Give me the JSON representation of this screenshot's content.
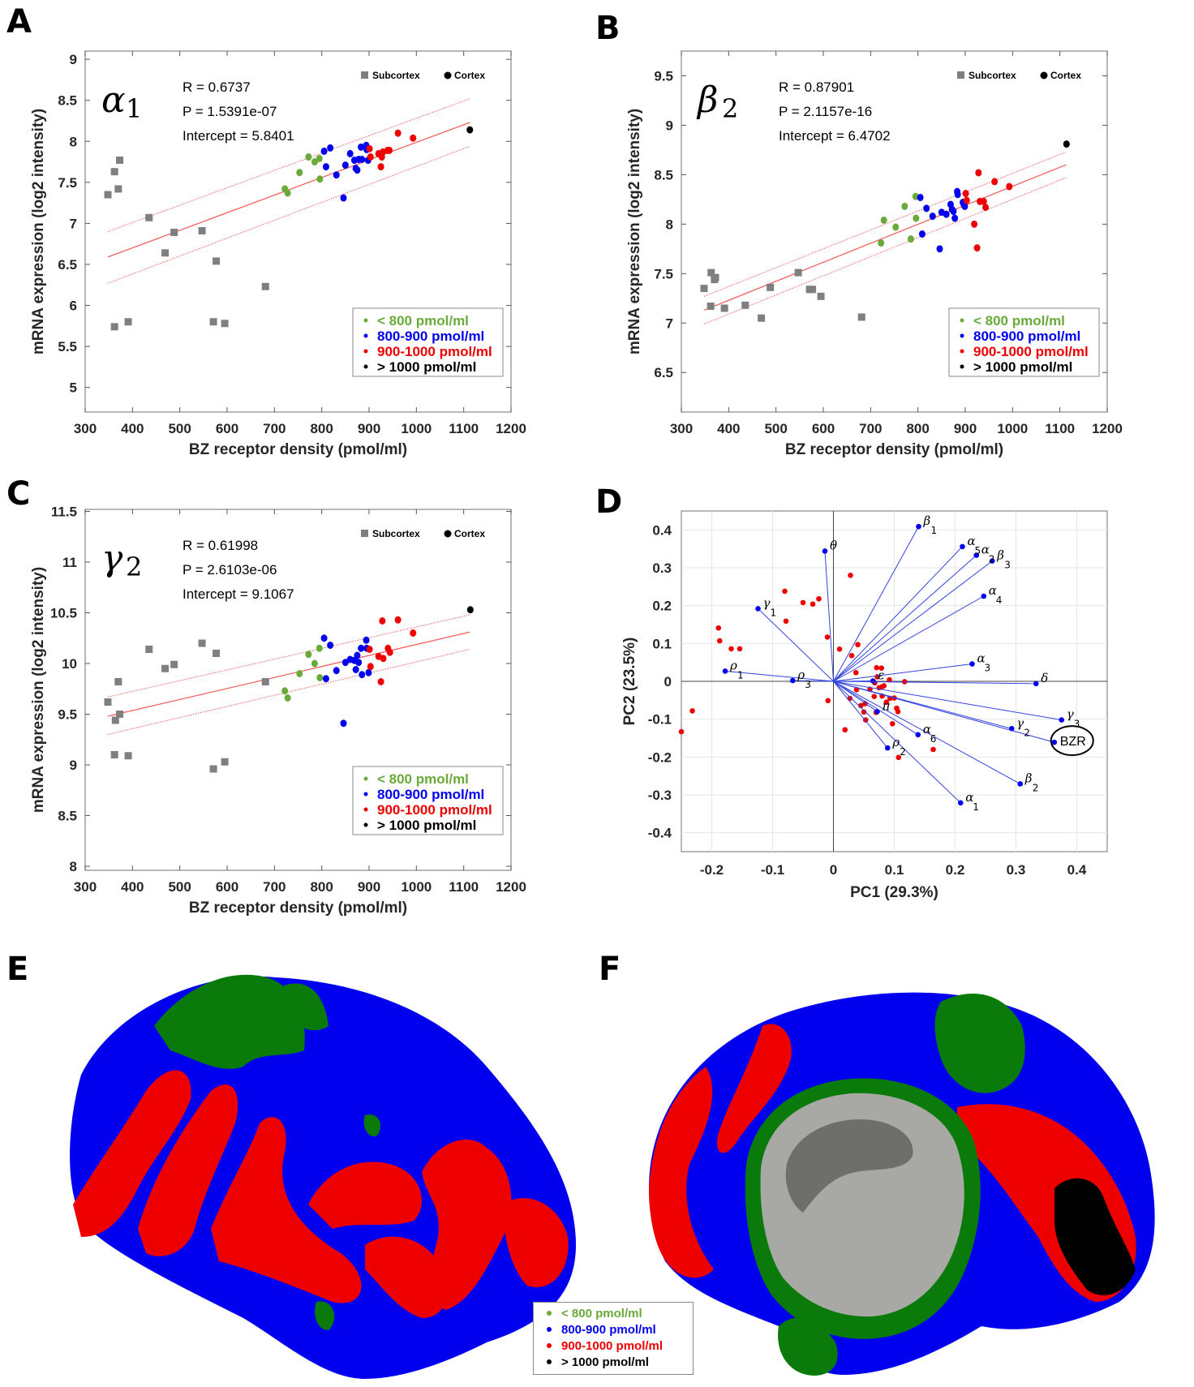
{
  "panel_labels": {
    "A": "A",
    "B": "B",
    "C": "C",
    "D": "D",
    "E": "E",
    "F": "F"
  },
  "colors": {
    "green": "#6aaa3a",
    "blue": "#0000ee",
    "red": "#ee0000",
    "black": "#000000",
    "gray": "#7f7f7f",
    "fit": "#f06060",
    "pca_vec": "#3344dd"
  },
  "legend_bins": [
    {
      "label": "< 800 pmol/ml",
      "color": "#6aaa3a"
    },
    {
      "label": "800-900 pmol/ml",
      "color": "#0000ee"
    },
    {
      "label": "900-1000 pmol/ml",
      "color": "#ee0000"
    },
    {
      "label": "> 1000 pmol/ml",
      "color": "#000000"
    }
  ],
  "region_legend": {
    "subcortex": "Subcortex",
    "cortex": "Cortex"
  },
  "chart_data": [
    {
      "id": "A",
      "type": "scatter",
      "subunit": {
        "symbol": "α",
        "sub": "1"
      },
      "stats": {
        "r": "R = 0.6737",
        "p": "P = 1.5391e-07",
        "intercept": "Intercept = 5.8401"
      },
      "xlabel": "BZ receptor density (pmol/ml)",
      "ylabel": "mRNA expression (log2 intensity)",
      "xlim": [
        300,
        1200
      ],
      "ylim": [
        4.7,
        9.1
      ],
      "xticks": [
        300,
        400,
        500,
        600,
        700,
        800,
        900,
        1000,
        1100,
        1200
      ],
      "yticks": [
        5,
        5.5,
        6,
        6.5,
        7,
        7.5,
        8,
        8.5,
        9
      ],
      "ytick_labels": [
        "5",
        "5.5",
        "6",
        "6.5",
        "7",
        "7.5",
        "8",
        "8.5",
        "9"
      ],
      "fit": {
        "x": [
          348,
          1113
        ],
        "y": [
          6.59,
          8.23
        ],
        "ci_lo": [
          6.27,
          7.94
        ],
        "ci_hi": [
          6.9,
          8.52
        ]
      },
      "subcortex": [
        [
          348,
          7.35
        ],
        [
          362,
          7.63
        ],
        [
          370,
          7.42
        ],
        [
          373,
          7.77
        ],
        [
          362,
          5.74
        ],
        [
          391,
          5.8
        ],
        [
          435,
          7.07
        ],
        [
          469,
          6.64
        ],
        [
          488,
          6.89
        ],
        [
          547,
          6.91
        ],
        [
          577,
          6.54
        ],
        [
          571,
          5.8
        ],
        [
          595,
          5.78
        ],
        [
          681,
          6.23
        ]
      ],
      "points": [
        [
          722,
          7.42,
          "g"
        ],
        [
          728,
          7.37,
          "g"
        ],
        [
          753,
          7.62,
          "g"
        ],
        [
          772,
          7.81,
          "g"
        ],
        [
          785,
          7.75,
          "g"
        ],
        [
          795,
          7.79,
          "g"
        ],
        [
          796,
          7.54,
          "g"
        ],
        [
          805,
          7.88,
          "b"
        ],
        [
          809,
          7.69,
          "b"
        ],
        [
          818,
          7.92,
          "b"
        ],
        [
          831,
          7.59,
          "b"
        ],
        [
          846,
          7.31,
          "b"
        ],
        [
          850,
          7.71,
          "b"
        ],
        [
          860,
          7.85,
          "b"
        ],
        [
          869,
          7.77,
          "b"
        ],
        [
          872,
          7.67,
          "b"
        ],
        [
          875,
          7.65,
          "b"
        ],
        [
          878,
          7.78,
          "b"
        ],
        [
          883,
          7.93,
          "b"
        ],
        [
          885,
          7.78,
          "b"
        ],
        [
          894,
          7.95,
          "b"
        ],
        [
          895,
          7.9,
          "b"
        ],
        [
          898,
          7.77,
          "b"
        ],
        [
          901,
          7.91,
          "r"
        ],
        [
          903,
          7.81,
          "r"
        ],
        [
          920,
          7.85,
          "r"
        ],
        [
          925,
          7.69,
          "r"
        ],
        [
          927,
          7.81,
          "r"
        ],
        [
          929,
          7.87,
          "r"
        ],
        [
          939,
          7.89,
          "r"
        ],
        [
          943,
          7.89,
          "r"
        ],
        [
          961,
          8.1,
          "r"
        ],
        [
          993,
          8.04,
          "r"
        ],
        [
          1113,
          8.14,
          "k"
        ]
      ]
    },
    {
      "id": "B",
      "type": "scatter",
      "subunit": {
        "symbol": "β",
        "sub": "2"
      },
      "stats": {
        "r": "R = 0.87901",
        "p": "P = 2.1157e-16",
        "intercept": "Intercept = 6.4702"
      },
      "xlabel": "BZ receptor density (pmol/ml)",
      "ylabel": "mRNA expression (log2 intensity)",
      "xlim": [
        300,
        1200
      ],
      "ylim": [
        6.1,
        9.75
      ],
      "xticks": [
        300,
        400,
        500,
        600,
        700,
        800,
        900,
        1000,
        1100,
        1200
      ],
      "yticks": [
        6.5,
        7,
        7.5,
        8,
        8.5,
        9,
        9.5
      ],
      "ytick_labels": [
        "6.5",
        "7",
        "7.5",
        "8",
        "8.5",
        "9",
        "9.5"
      ],
      "fit": {
        "x": [
          348,
          1113
        ],
        "y": [
          7.13,
          8.6
        ],
        "ci_lo": [
          6.99,
          8.47
        ],
        "ci_hi": [
          7.27,
          8.73
        ]
      },
      "subcortex": [
        [
          348,
          7.35
        ],
        [
          362,
          7.17
        ],
        [
          363,
          7.51
        ],
        [
          370,
          7.44
        ],
        [
          372,
          7.46
        ],
        [
          391,
          7.15
        ],
        [
          435,
          7.18
        ],
        [
          469,
          7.05
        ],
        [
          488,
          7.36
        ],
        [
          547,
          7.51
        ],
        [
          571,
          7.34
        ],
        [
          577,
          7.34
        ],
        [
          595,
          7.27
        ],
        [
          681,
          7.06
        ]
      ],
      "points": [
        [
          722,
          7.81,
          "g"
        ],
        [
          728,
          8.04,
          "g"
        ],
        [
          753,
          7.97,
          "g"
        ],
        [
          772,
          8.18,
          "g"
        ],
        [
          785,
          7.85,
          "g"
        ],
        [
          795,
          8.28,
          "g"
        ],
        [
          796,
          8.06,
          "g"
        ],
        [
          805,
          8.27,
          "b"
        ],
        [
          809,
          7.9,
          "b"
        ],
        [
          818,
          8.16,
          "b"
        ],
        [
          831,
          8.08,
          "b"
        ],
        [
          846,
          7.75,
          "b"
        ],
        [
          850,
          8.12,
          "b"
        ],
        [
          860,
          8.1,
          "b"
        ],
        [
          869,
          8.2,
          "b"
        ],
        [
          872,
          8.15,
          "b"
        ],
        [
          875,
          8.13,
          "b"
        ],
        [
          878,
          8.06,
          "b"
        ],
        [
          883,
          8.33,
          "b"
        ],
        [
          884,
          8.3,
          "b"
        ],
        [
          895,
          8.22,
          "b"
        ],
        [
          897,
          8.2,
          "b"
        ],
        [
          899,
          8.18,
          "b"
        ],
        [
          901,
          8.31,
          "r"
        ],
        [
          903,
          8.24,
          "r"
        ],
        [
          919,
          8.0,
          "r"
        ],
        [
          925,
          7.76,
          "r"
        ],
        [
          928,
          8.52,
          "r"
        ],
        [
          931,
          8.23,
          "r"
        ],
        [
          939,
          8.23,
          "r"
        ],
        [
          943,
          8.17,
          "r"
        ],
        [
          962,
          8.43,
          "r"
        ],
        [
          993,
          8.38,
          "r"
        ],
        [
          1114,
          8.81,
          "k"
        ]
      ]
    },
    {
      "id": "C",
      "type": "scatter",
      "subunit": {
        "symbol": "γ",
        "sub": "2"
      },
      "stats": {
        "r": "R = 0.61998",
        "p": "P = 2.6103e-06",
        "intercept": "Intercept = 9.1067"
      },
      "xlabel": "BZ receptor density (pmol/ml)",
      "ylabel": "mRNA expression (log2 intensity)",
      "xlim": [
        300,
        1200
      ],
      "ylim": [
        7.96,
        11.52
      ],
      "xticks": [
        300,
        400,
        500,
        600,
        700,
        800,
        900,
        1000,
        1100,
        1200
      ],
      "yticks": [
        8,
        8.5,
        9,
        9.5,
        10,
        10.5,
        11,
        11.5
      ],
      "ytick_labels": [
        "8",
        "8.5",
        "9",
        "9.5",
        "10",
        "10.5",
        "11",
        "11.5"
      ],
      "fit": {
        "x": [
          348,
          1113
        ],
        "y": [
          9.48,
          10.31
        ],
        "ci_lo": [
          9.3,
          10.14
        ],
        "ci_hi": [
          9.67,
          10.48
        ]
      },
      "subcortex": [
        [
          348,
          9.62
        ],
        [
          362,
          9.1
        ],
        [
          364,
          9.44
        ],
        [
          370,
          9.82
        ],
        [
          373,
          9.5
        ],
        [
          391,
          9.09
        ],
        [
          435,
          10.14
        ],
        [
          469,
          9.95
        ],
        [
          488,
          9.99
        ],
        [
          547,
          10.2
        ],
        [
          571,
          8.96
        ],
        [
          577,
          10.1
        ],
        [
          595,
          9.03
        ],
        [
          681,
          9.82
        ]
      ],
      "points": [
        [
          722,
          9.73,
          "g"
        ],
        [
          728,
          9.66,
          "g"
        ],
        [
          753,
          9.9,
          "g"
        ],
        [
          772,
          10.09,
          "g"
        ],
        [
          785,
          10.0,
          "g"
        ],
        [
          795,
          10.15,
          "g"
        ],
        [
          796,
          9.86,
          "g"
        ],
        [
          805,
          10.25,
          "b"
        ],
        [
          809,
          9.85,
          "b"
        ],
        [
          818,
          10.18,
          "b"
        ],
        [
          831,
          9.93,
          "b"
        ],
        [
          846,
          9.41,
          "b"
        ],
        [
          850,
          10.01,
          "b"
        ],
        [
          860,
          10.04,
          "b"
        ],
        [
          869,
          10.03,
          "b"
        ],
        [
          872,
          9.94,
          "b"
        ],
        [
          875,
          10.08,
          "b"
        ],
        [
          878,
          10.01,
          "b"
        ],
        [
          883,
          10.15,
          "b"
        ],
        [
          885,
          9.89,
          "b"
        ],
        [
          894,
          10.23,
          "b"
        ],
        [
          895,
          10.15,
          "b"
        ],
        [
          899,
          9.91,
          "b"
        ],
        [
          901,
          10.14,
          "r"
        ],
        [
          903,
          9.97,
          "r"
        ],
        [
          920,
          10.07,
          "r"
        ],
        [
          925,
          9.82,
          "r"
        ],
        [
          928,
          10.42,
          "r"
        ],
        [
          930,
          10.05,
          "r"
        ],
        [
          940,
          10.15,
          "r"
        ],
        [
          944,
          10.11,
          "r"
        ],
        [
          961,
          10.43,
          "r"
        ],
        [
          993,
          10.3,
          "r"
        ],
        [
          1114,
          10.53,
          "k"
        ]
      ]
    },
    {
      "id": "D",
      "type": "scatter",
      "subtype": "pca-biplot",
      "xlabel": "PC1 (29.3%)",
      "ylabel": "PC2 (23.5%)",
      "xlim": [
        -0.25,
        0.45
      ],
      "ylim": [
        -0.45,
        0.45
      ],
      "xticks": [
        -0.2,
        -0.1,
        0,
        0.1,
        0.2,
        0.3,
        0.4
      ],
      "xtick_labels": [
        "-0.2",
        "-0.1",
        "0",
        "0.1",
        "0.2",
        "0.3",
        "0.4"
      ],
      "yticks": [
        -0.4,
        -0.3,
        -0.2,
        -0.1,
        0,
        0.1,
        0.2,
        0.3,
        0.4
      ],
      "ytick_labels": [
        "-0.4",
        "-0.3",
        "-0.2",
        "-0.1",
        "0",
        "0.1",
        "0.2",
        "0.3",
        "0.4"
      ],
      "grid": true,
      "vectors": [
        {
          "symbol": "β",
          "sub": "1",
          "x": 0.14,
          "y": 0.409
        },
        {
          "symbol": "θ",
          "sub": "",
          "x": -0.014,
          "y": 0.344
        },
        {
          "symbol": "α",
          "sub": "5",
          "x": 0.212,
          "y": 0.356
        },
        {
          "symbol": "α",
          "sub": "2",
          "x": 0.235,
          "y": 0.333
        },
        {
          "symbol": "β",
          "sub": "3",
          "x": 0.261,
          "y": 0.318
        },
        {
          "symbol": "α",
          "sub": "4",
          "x": 0.247,
          "y": 0.225
        },
        {
          "symbol": "γ",
          "sub": "1",
          "x": -0.124,
          "y": 0.192
        },
        {
          "symbol": "α",
          "sub": "3",
          "x": 0.228,
          "y": 0.046
        },
        {
          "symbol": "ρ",
          "sub": "1",
          "x": -0.178,
          "y": 0.027
        },
        {
          "symbol": "ρ",
          "sub": "3",
          "x": -0.067,
          "y": 0.002
        },
        {
          "symbol": "ε",
          "sub": "",
          "x": 0.065,
          "y": 0.001
        },
        {
          "symbol": "δ",
          "sub": "",
          "x": 0.333,
          "y": -0.006
        },
        {
          "symbol": "π",
          "sub": "",
          "x": 0.072,
          "y": -0.08
        },
        {
          "symbol": "γ",
          "sub": "3",
          "x": 0.375,
          "y": -0.102
        },
        {
          "symbol": "γ",
          "sub": "2",
          "x": 0.293,
          "y": -0.125
        },
        {
          "symbol": "α",
          "sub": "6",
          "x": 0.139,
          "y": -0.141
        },
        {
          "symbol": "ρ",
          "sub": "2",
          "x": 0.089,
          "y": -0.176
        },
        {
          "symbol": "β",
          "sub": "2",
          "x": 0.307,
          "y": -0.271
        },
        {
          "symbol": "α",
          "sub": "1",
          "x": 0.209,
          "y": -0.321
        }
      ],
      "bzr": {
        "label": "BZR",
        "x": 0.363,
        "y": -0.161
      },
      "regions": [
        [
          -0.189,
          0.141
        ],
        [
          -0.187,
          0.107
        ],
        [
          -0.168,
          0.086
        ],
        [
          -0.154,
          0.086
        ],
        [
          -0.08,
          0.238
        ],
        [
          -0.078,
          0.159
        ],
        [
          -0.05,
          0.208
        ],
        [
          -0.034,
          0.204
        ],
        [
          -0.024,
          0.218
        ],
        [
          -0.01,
          0.117
        ],
        [
          0.01,
          0.085
        ],
        [
          0.03,
          0.068
        ],
        [
          0.028,
          0.28
        ],
        [
          0.04,
          0.097
        ],
        [
          0.037,
          0.023
        ],
        [
          0.071,
          0.036
        ],
        [
          0.079,
          0.035
        ],
        [
          0.072,
          0.012
        ],
        [
          0.092,
          0.004
        ],
        [
          0.117,
          -0.001
        ],
        [
          0.068,
          -0.004
        ],
        [
          0.038,
          -0.022
        ],
        [
          0.06,
          -0.021
        ],
        [
          0.075,
          -0.017
        ],
        [
          0.08,
          -0.014
        ],
        [
          0.083,
          -0.012
        ],
        [
          0.067,
          -0.04
        ],
        [
          0.08,
          -0.039
        ],
        [
          0.093,
          -0.045
        ],
        [
          0.1,
          -0.044
        ],
        [
          0.087,
          -0.055
        ],
        [
          0.052,
          -0.059
        ],
        [
          0.045,
          -0.064
        ],
        [
          0.027,
          -0.045
        ],
        [
          -0.009,
          -0.051
        ],
        [
          0.05,
          -0.081
        ],
        [
          0.07,
          -0.082
        ],
        [
          0.104,
          -0.071
        ],
        [
          0.106,
          -0.08
        ],
        [
          0.053,
          -0.102
        ],
        [
          0.097,
          -0.112
        ],
        [
          0.019,
          -0.128
        ],
        [
          0.164,
          -0.18
        ],
        [
          0.107,
          -0.201
        ],
        [
          -0.232,
          -0.078
        ],
        [
          -0.25,
          -0.133
        ]
      ]
    }
  ]
}
